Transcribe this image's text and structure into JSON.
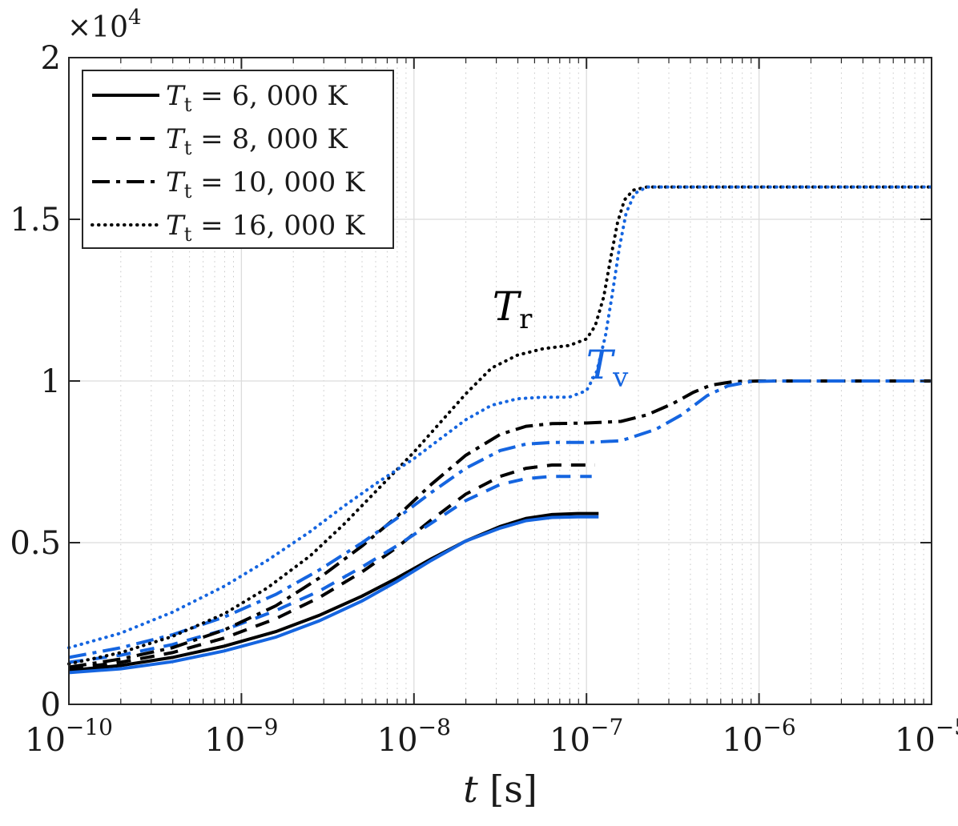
{
  "figure": {
    "background": "#ffffff",
    "axis_color": "#262626",
    "grid_major_color": "#dcdcdc",
    "grid_minor_color": "#c9c9c9",
    "series_black": "#000000",
    "series_blue": "#1565e0"
  },
  "chart_data": {
    "type": "line",
    "title": "",
    "xlabel": "t [s]",
    "xlabel_var": "t",
    "xlabel_unit": "[s]",
    "ylabel": "",
    "xscale": "log",
    "xlim_log": [
      -10,
      -5
    ],
    "ylim": [
      0,
      20000
    ],
    "y_axis_multiplier": "×10^4",
    "y_axis_multiplier_base": "×10",
    "y_axis_multiplier_exp": "4",
    "xtick_exponents": [
      -10,
      -9,
      -8,
      -7,
      -6,
      -5
    ],
    "xtick_labels": [
      "10^-10",
      "10^-9",
      "10^-8",
      "10^-7",
      "10^-6",
      "10^-5"
    ],
    "yticks": [
      {
        "value": 0,
        "label": "0"
      },
      {
        "value": 5000,
        "label": "0.5"
      },
      {
        "value": 10000,
        "label": "1"
      },
      {
        "value": 15000,
        "label": "1.5"
      },
      {
        "value": 20000,
        "label": "2"
      }
    ],
    "grid": true,
    "legend_position": "top-left",
    "legend": [
      {
        "style": "solid",
        "variable": "T",
        "subscript": "t",
        "rhs": "= 6, 000 K",
        "label": "T_t = 6,000 K"
      },
      {
        "style": "dashed",
        "variable": "T",
        "subscript": "t",
        "rhs": "= 8, 000 K",
        "label": "T_t = 8,000 K"
      },
      {
        "style": "dashdot",
        "variable": "T",
        "subscript": "t",
        "rhs": "= 10, 000 K",
        "label": "T_t = 10,000 K"
      },
      {
        "style": "dotted",
        "variable": "T",
        "subscript": "t",
        "rhs": "= 16, 000 K",
        "label": "T_t = 16,000 K"
      }
    ],
    "annotations": [
      {
        "label": "T_r",
        "variable": "T",
        "subscript": "r",
        "color": "#000000",
        "x_log": -7.43,
        "y": 12300
      },
      {
        "label": "T_v",
        "variable": "T",
        "subscript": "v",
        "color": "#1565e0",
        "x_log": -6.88,
        "y": 10500
      }
    ],
    "series": [
      {
        "name": "Tr-6000K",
        "group": "T_r",
        "Tt": "6,000 K",
        "color": "#000000",
        "style": "solid",
        "points": [
          [
            -10,
            1050
          ],
          [
            -9.7,
            1200
          ],
          [
            -9.4,
            1450
          ],
          [
            -9.1,
            1800
          ],
          [
            -8.8,
            2250
          ],
          [
            -8.55,
            2750
          ],
          [
            -8.3,
            3350
          ],
          [
            -8.1,
            3900
          ],
          [
            -7.9,
            4500
          ],
          [
            -7.7,
            5050
          ],
          [
            -7.5,
            5500
          ],
          [
            -7.35,
            5750
          ],
          [
            -7.2,
            5870
          ],
          [
            -7.05,
            5900
          ],
          [
            -6.93,
            5900
          ]
        ]
      },
      {
        "name": "Tv-6000K",
        "group": "T_v",
        "Tt": "6,000 K",
        "color": "#1565e0",
        "style": "solid",
        "points": [
          [
            -10,
            980
          ],
          [
            -9.7,
            1100
          ],
          [
            -9.4,
            1320
          ],
          [
            -9.1,
            1650
          ],
          [
            -8.8,
            2080
          ],
          [
            -8.55,
            2580
          ],
          [
            -8.3,
            3200
          ],
          [
            -8.1,
            3800
          ],
          [
            -7.9,
            4450
          ],
          [
            -7.7,
            5050
          ],
          [
            -7.5,
            5450
          ],
          [
            -7.35,
            5680
          ],
          [
            -7.2,
            5780
          ],
          [
            -7.05,
            5800
          ],
          [
            -6.93,
            5800
          ]
        ]
      },
      {
        "name": "Tr-8000K",
        "group": "T_r",
        "Tt": "8,000 K",
        "color": "#000000",
        "style": "dashed",
        "points": [
          [
            -10,
            1100
          ],
          [
            -9.7,
            1300
          ],
          [
            -9.4,
            1600
          ],
          [
            -9.1,
            2050
          ],
          [
            -8.8,
            2650
          ],
          [
            -8.55,
            3300
          ],
          [
            -8.3,
            4100
          ],
          [
            -8.1,
            4850
          ],
          [
            -7.9,
            5700
          ],
          [
            -7.7,
            6500
          ],
          [
            -7.5,
            7050
          ],
          [
            -7.35,
            7300
          ],
          [
            -7.2,
            7400
          ],
          [
            -6.95,
            7400
          ]
        ]
      },
      {
        "name": "Tv-8000K",
        "group": "T_v",
        "Tt": "8,000 K",
        "color": "#1565e0",
        "style": "dashed",
        "points": [
          [
            -10,
            1300
          ],
          [
            -9.7,
            1520
          ],
          [
            -9.4,
            1850
          ],
          [
            -9.1,
            2300
          ],
          [
            -8.8,
            2900
          ],
          [
            -8.55,
            3500
          ],
          [
            -8.3,
            4250
          ],
          [
            -8.1,
            4900
          ],
          [
            -7.9,
            5600
          ],
          [
            -7.7,
            6300
          ],
          [
            -7.5,
            6800
          ],
          [
            -7.35,
            6980
          ],
          [
            -7.2,
            7050
          ],
          [
            -6.97,
            7050
          ]
        ]
      },
      {
        "name": "Tr-10000K",
        "group": "T_r",
        "Tt": "10,000 K",
        "color": "#000000",
        "style": "dashdot",
        "points": [
          [
            -10,
            1150
          ],
          [
            -9.7,
            1400
          ],
          [
            -9.4,
            1750
          ],
          [
            -9.1,
            2300
          ],
          [
            -8.8,
            3050
          ],
          [
            -8.55,
            3900
          ],
          [
            -8.3,
            4900
          ],
          [
            -8.1,
            5800
          ],
          [
            -7.9,
            6800
          ],
          [
            -7.7,
            7700
          ],
          [
            -7.5,
            8350
          ],
          [
            -7.35,
            8600
          ],
          [
            -7.2,
            8680
          ],
          [
            -7,
            8700
          ],
          [
            -6.8,
            8750
          ],
          [
            -6.65,
            8950
          ],
          [
            -6.5,
            9300
          ],
          [
            -6.38,
            9650
          ],
          [
            -6.28,
            9870
          ],
          [
            -6.15,
            9980
          ],
          [
            -6,
            10000
          ],
          [
            -5,
            10000
          ]
        ]
      },
      {
        "name": "Tv-10000K",
        "group": "T_v",
        "Tt": "10,000 K",
        "color": "#1565e0",
        "style": "dashdot",
        "points": [
          [
            -10,
            1450
          ],
          [
            -9.7,
            1750
          ],
          [
            -9.4,
            2150
          ],
          [
            -9.1,
            2700
          ],
          [
            -8.8,
            3400
          ],
          [
            -8.55,
            4150
          ],
          [
            -8.3,
            5000
          ],
          [
            -8.1,
            5750
          ],
          [
            -7.9,
            6550
          ],
          [
            -7.7,
            7300
          ],
          [
            -7.5,
            7850
          ],
          [
            -7.35,
            8050
          ],
          [
            -7.2,
            8100
          ],
          [
            -7,
            8100
          ],
          [
            -6.8,
            8150
          ],
          [
            -6.6,
            8500
          ],
          [
            -6.45,
            8950
          ],
          [
            -6.3,
            9550
          ],
          [
            -6.18,
            9850
          ],
          [
            -6.05,
            9980
          ],
          [
            -5.9,
            10000
          ],
          [
            -5,
            10000
          ]
        ]
      },
      {
        "name": "Tr-16000K",
        "group": "T_r",
        "Tt": "16,000 K",
        "color": "#000000",
        "style": "dotted",
        "points": [
          [
            -10,
            1250
          ],
          [
            -9.7,
            1600
          ],
          [
            -9.4,
            2100
          ],
          [
            -9.1,
            2800
          ],
          [
            -8.85,
            3600
          ],
          [
            -8.6,
            4600
          ],
          [
            -8.4,
            5600
          ],
          [
            -8.2,
            6700
          ],
          [
            -8,
            7800
          ],
          [
            -7.85,
            8700
          ],
          [
            -7.7,
            9600
          ],
          [
            -7.55,
            10400
          ],
          [
            -7.4,
            10800
          ],
          [
            -7.25,
            11000
          ],
          [
            -7.1,
            11100
          ],
          [
            -7,
            11300
          ],
          [
            -6.95,
            11700
          ],
          [
            -6.9,
            12600
          ],
          [
            -6.86,
            13800
          ],
          [
            -6.82,
            14900
          ],
          [
            -6.78,
            15600
          ],
          [
            -6.73,
            15900
          ],
          [
            -6.65,
            16000
          ],
          [
            -5,
            16000
          ]
        ]
      },
      {
        "name": "Tv-16000K",
        "group": "T_v",
        "Tt": "16,000 K",
        "color": "#1565e0",
        "style": "dotted",
        "points": [
          [
            -10,
            1750
          ],
          [
            -9.7,
            2200
          ],
          [
            -9.4,
            2850
          ],
          [
            -9.1,
            3650
          ],
          [
            -8.85,
            4450
          ],
          [
            -8.6,
            5350
          ],
          [
            -8.4,
            6150
          ],
          [
            -8.2,
            6900
          ],
          [
            -8,
            7600
          ],
          [
            -7.85,
            8200
          ],
          [
            -7.7,
            8800
          ],
          [
            -7.55,
            9250
          ],
          [
            -7.4,
            9450
          ],
          [
            -7.25,
            9500
          ],
          [
            -7.1,
            9500
          ],
          [
            -7,
            9700
          ],
          [
            -6.94,
            10300
          ],
          [
            -6.89,
            11400
          ],
          [
            -6.85,
            12700
          ],
          [
            -6.81,
            14100
          ],
          [
            -6.77,
            15200
          ],
          [
            -6.72,
            15800
          ],
          [
            -6.65,
            16000
          ],
          [
            -5,
            16000
          ]
        ]
      }
    ]
  }
}
